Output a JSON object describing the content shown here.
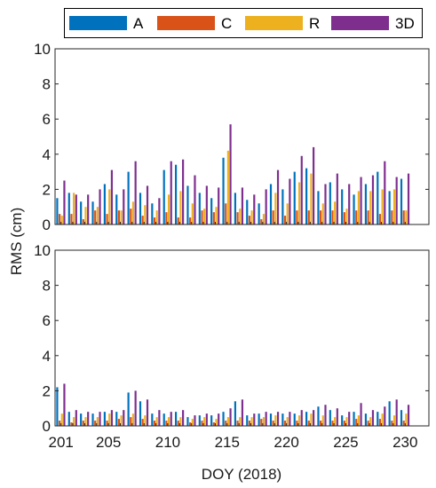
{
  "chart_data": [
    {
      "type": "bar",
      "panel": "top",
      "ylabel": "",
      "xlabel": "",
      "ylim": [
        0,
        10
      ],
      "yticks": [
        0,
        2,
        4,
        6,
        8,
        10
      ],
      "xlim": [
        200.5,
        232
      ],
      "grid": false,
      "legend_position": "top",
      "x": [
        201,
        202,
        203,
        204,
        205,
        206,
        207,
        208,
        209,
        210,
        211,
        212,
        213,
        214,
        215,
        216,
        217,
        218,
        219,
        220,
        221,
        222,
        223,
        224,
        225,
        226,
        227,
        228,
        229,
        230
      ],
      "series": [
        {
          "name": "A",
          "color": "#0072BD",
          "values": [
            1.5,
            1.8,
            1.3,
            1.3,
            2.3,
            1.7,
            3.0,
            1.8,
            1.2,
            3.1,
            3.4,
            2.2,
            1.8,
            1.5,
            3.8,
            1.8,
            1.4,
            1.2,
            2.3,
            2.0,
            3.0,
            3.2,
            1.9,
            2.4,
            2.0,
            1.7,
            2.3,
            3.0,
            1.9,
            2.6
          ]
        },
        {
          "name": "C",
          "color": "#D95319",
          "values": [
            0.6,
            0.6,
            0.3,
            0.8,
            0.6,
            0.8,
            0.9,
            0.5,
            0.4,
            0.7,
            0.4,
            0.4,
            0.8,
            0.7,
            1.2,
            0.7,
            0.5,
            0.3,
            0.8,
            0.5,
            0.8,
            0.8,
            0.8,
            0.8,
            0.7,
            0.8,
            0.8,
            0.6,
            0.8,
            0.8
          ]
        },
        {
          "name": "R",
          "color": "#EDB120",
          "values": [
            0.5,
            1.8,
            1.0,
            1.0,
            2.0,
            0.8,
            1.3,
            1.1,
            0.8,
            1.7,
            1.9,
            1.2,
            0.9,
            1.0,
            4.2,
            0.9,
            0.8,
            0.6,
            1.8,
            1.2,
            2.4,
            2.9,
            1.2,
            1.3,
            0.9,
            1.9,
            1.9,
            2.0,
            2.0,
            0.8
          ]
        },
        {
          "name": "3D",
          "color": "#7E2F8E",
          "values": [
            2.5,
            1.7,
            1.7,
            2.0,
            3.1,
            2.0,
            3.6,
            2.2,
            1.5,
            3.6,
            3.7,
            2.8,
            2.2,
            2.1,
            5.7,
            2.1,
            1.7,
            2.0,
            3.1,
            2.6,
            3.9,
            4.4,
            2.3,
            2.9,
            2.3,
            2.7,
            2.8,
            3.6,
            2.7,
            2.9
          ]
        }
      ]
    },
    {
      "type": "bar",
      "panel": "bottom",
      "ylabel": "RMS (cm)",
      "xlabel": "DOY (2018)",
      "ylim": [
        0,
        10
      ],
      "yticks": [
        0,
        2,
        4,
        6,
        8,
        10
      ],
      "xlim": [
        200.5,
        232
      ],
      "xticks": [
        201,
        205,
        210,
        215,
        220,
        225,
        230
      ],
      "grid": false,
      "x": [
        201,
        202,
        203,
        204,
        205,
        206,
        207,
        208,
        209,
        210,
        211,
        212,
        213,
        214,
        215,
        216,
        217,
        218,
        219,
        220,
        221,
        222,
        223,
        224,
        225,
        226,
        227,
        228,
        229,
        230
      ],
      "series": [
        {
          "name": "A",
          "color": "#0072BD",
          "values": [
            2.2,
            0.8,
            0.7,
            0.7,
            0.8,
            0.8,
            1.9,
            1.4,
            0.7,
            0.7,
            0.8,
            0.5,
            0.6,
            0.6,
            0.8,
            1.4,
            0.6,
            0.7,
            0.7,
            0.7,
            0.7,
            0.8,
            1.1,
            0.9,
            0.6,
            0.8,
            0.7,
            0.8,
            1.4,
            0.9
          ]
        },
        {
          "name": "C",
          "color": "#D95319",
          "values": [
            0.3,
            0.2,
            0.3,
            0.3,
            0.3,
            0.4,
            0.5,
            0.4,
            0.3,
            0.3,
            0.3,
            0.2,
            0.3,
            0.2,
            0.3,
            0.3,
            0.3,
            0.4,
            0.3,
            0.3,
            0.3,
            0.3,
            0.3,
            0.3,
            0.3,
            0.4,
            0.3,
            0.4,
            0.3,
            0.3
          ]
        },
        {
          "name": "R",
          "color": "#EDB120",
          "values": [
            0.7,
            0.5,
            0.5,
            0.5,
            0.7,
            0.6,
            0.7,
            0.6,
            0.5,
            0.5,
            0.5,
            0.4,
            0.5,
            0.4,
            0.5,
            0.5,
            0.5,
            0.5,
            0.6,
            0.5,
            0.6,
            0.7,
            0.6,
            0.5,
            0.5,
            0.6,
            0.5,
            0.7,
            0.6,
            0.7
          ]
        },
        {
          "name": "3D",
          "color": "#7E2F8E",
          "values": [
            2.4,
            0.9,
            0.8,
            0.8,
            0.9,
            0.9,
            2.0,
            1.5,
            0.9,
            0.8,
            0.9,
            0.6,
            0.7,
            0.7,
            1.0,
            1.5,
            0.7,
            0.8,
            0.8,
            0.8,
            0.9,
            0.9,
            1.2,
            1.0,
            0.8,
            1.3,
            0.9,
            1.1,
            1.5,
            1.2
          ]
        }
      ]
    }
  ]
}
